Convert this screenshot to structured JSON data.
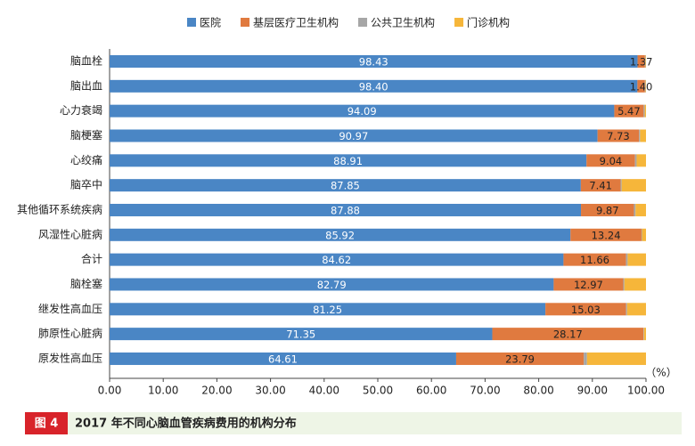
{
  "chart_data": {
    "type": "stacked-hbar",
    "figure_label": "图 4",
    "title": "2017 年不同心脑血管疾病费用的机构分布",
    "xlabel": "（%）",
    "categories": [
      "脑血栓",
      "脑出血",
      "心力衰竭",
      "脑梗塞",
      "心绞痛",
      "脑卒中",
      "其他循环系统疾病",
      "风湿性心脏病",
      "合计",
      "脑栓塞",
      "继发性高血压",
      "肺原性心脏病",
      "原发性高血压"
    ],
    "series": [
      {
        "name": "医院",
        "color": "#4a86c5",
        "values": [
          98.43,
          98.4,
          94.09,
          90.97,
          88.91,
          87.85,
          87.88,
          85.92,
          84.62,
          82.79,
          81.25,
          71.35,
          64.61
        ],
        "value_labels": [
          "98.43",
          "98.40",
          "94.09",
          "90.97",
          "88.91",
          "87.85",
          "87.88",
          "85.92",
          "84.62",
          "82.79",
          "81.25",
          "71.35",
          "64.61"
        ]
      },
      {
        "name": "基层医疗卫生机构",
        "color": "#e07a3f",
        "values": [
          1.37,
          1.4,
          5.47,
          7.73,
          9.04,
          7.41,
          9.87,
          13.24,
          11.66,
          12.97,
          15.03,
          28.17,
          23.79
        ],
        "value_labels": [
          "1.37",
          "1.40",
          "5.47",
          "7.73",
          "9.04",
          "7.41",
          "9.87",
          "13.24",
          "11.66",
          "12.97",
          "15.03",
          "28.17",
          "23.79"
        ]
      },
      {
        "name": "公共卫生机构",
        "color": "#a6a6a6",
        "values": [
          0.1,
          0.1,
          0.2,
          0.2,
          0.3,
          0.2,
          0.3,
          0.1,
          0.3,
          0.2,
          0.2,
          0.1,
          0.6
        ]
      },
      {
        "name": "门诊机构",
        "color": "#f6b63a",
        "values": [
          0.1,
          0.1,
          0.24,
          1.1,
          1.75,
          4.54,
          1.95,
          0.74,
          3.42,
          4.04,
          3.52,
          0.38,
          11.0
        ]
      }
    ],
    "xlim": [
      0,
      100
    ],
    "xticks": [
      {
        "value": 0,
        "label": "0.00"
      },
      {
        "value": 10,
        "label": "10.00"
      },
      {
        "value": 20,
        "label": "20.00"
      },
      {
        "value": 30,
        "label": "30.00"
      },
      {
        "value": 40,
        "label": "40.00"
      },
      {
        "value": 50,
        "label": "50.00"
      },
      {
        "value": 60,
        "label": "60.00"
      },
      {
        "value": 70,
        "label": "70.00"
      },
      {
        "value": 80,
        "label": "80.00"
      },
      {
        "value": 90,
        "label": "90.00"
      },
      {
        "value": 100,
        "label": "100.00"
      }
    ]
  }
}
